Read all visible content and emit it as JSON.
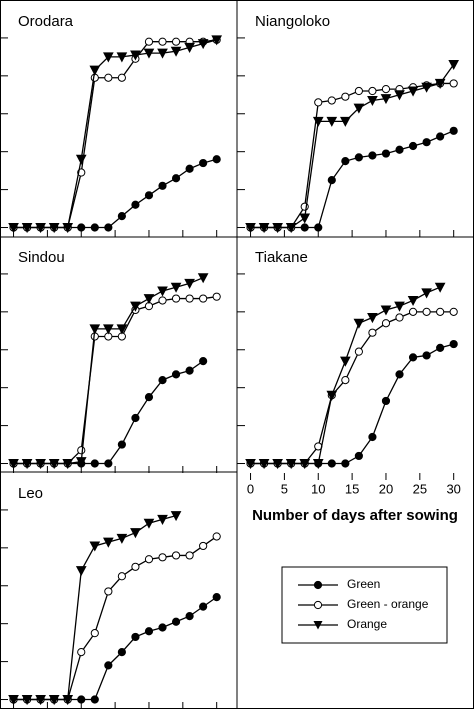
{
  "chart_data": [
    {
      "type": "line",
      "title": "Orodara",
      "x": [
        0,
        2,
        4,
        6,
        8,
        10,
        12,
        14,
        16,
        18,
        20,
        22,
        24,
        26,
        28,
        30
      ],
      "xlim": [
        -2,
        33
      ],
      "ylim": [
        -5,
        120
      ],
      "xticks": [
        0,
        5,
        10,
        15,
        20,
        25,
        30
      ],
      "yticks": [
        0,
        20,
        40,
        60,
        80,
        100
      ],
      "series": [
        {
          "color": "#000",
          "marker": "filled-circle",
          "values": [
            0,
            0,
            0,
            0,
            0,
            0,
            0,
            0,
            6,
            12,
            17,
            22,
            26,
            31,
            34,
            36
          ]
        },
        {
          "color": "#000",
          "marker": "open-circle",
          "values": [
            0,
            0,
            0,
            0,
            0,
            29,
            79,
            79,
            79,
            89,
            98,
            98,
            98,
            98,
            98,
            99
          ]
        },
        {
          "color": "#000",
          "marker": "triangle-down",
          "values": [
            0,
            0,
            0,
            0,
            0,
            36,
            83,
            90,
            90,
            91,
            92,
            92,
            93,
            95,
            97,
            99
          ]
        }
      ]
    },
    {
      "type": "line",
      "title": "Niangoloko",
      "x": [
        0,
        2,
        4,
        6,
        8,
        10,
        12,
        14,
        16,
        18,
        20,
        22,
        24,
        26,
        28,
        30
      ],
      "xlim": [
        -2,
        33
      ],
      "ylim": [
        -5,
        120
      ],
      "xticks": [
        0,
        5,
        10,
        15,
        20,
        25,
        30
      ],
      "yticks": [
        0,
        20,
        40,
        60,
        80,
        100
      ],
      "series": [
        {
          "color": "#000",
          "marker": "filled-circle",
          "values": [
            0,
            0,
            0,
            0,
            0,
            0,
            25,
            35,
            37,
            38,
            39,
            41,
            43,
            45,
            48,
            51
          ]
        },
        {
          "color": "#000",
          "marker": "open-circle",
          "values": [
            0,
            0,
            0,
            0,
            11,
            66,
            67,
            69,
            72,
            72,
            73,
            73,
            74,
            75,
            76,
            76
          ]
        },
        {
          "color": "#000",
          "marker": "triangle-down",
          "values": [
            0,
            0,
            0,
            0,
            5,
            56,
            56,
            56,
            63,
            67,
            68,
            70,
            72,
            74,
            76,
            86
          ]
        }
      ]
    },
    {
      "type": "line",
      "title": "Sindou",
      "x": [
        0,
        2,
        4,
        6,
        8,
        10,
        12,
        14,
        16,
        18,
        20,
        22,
        24,
        26,
        28,
        30
      ],
      "xlim": [
        -2,
        33
      ],
      "ylim": [
        -5,
        120
      ],
      "xticks": [
        0,
        5,
        10,
        15,
        20,
        25,
        30
      ],
      "yticks": [
        0,
        20,
        40,
        60,
        80,
        100
      ],
      "series": [
        {
          "color": "#000",
          "marker": "filled-circle",
          "values": [
            0,
            0,
            0,
            0,
            0,
            0,
            0,
            0,
            10,
            24,
            35,
            44,
            47,
            49,
            54,
            null
          ]
        },
        {
          "color": "#000",
          "marker": "open-circle",
          "values": [
            0,
            0,
            0,
            0,
            0,
            7,
            67,
            67,
            67,
            81,
            83,
            86,
            87,
            87,
            87,
            88
          ]
        },
        {
          "color": "#000",
          "marker": "triangle-down",
          "values": [
            0,
            0,
            0,
            0,
            0,
            1,
            71,
            71,
            71,
            83,
            87,
            91,
            93,
            95,
            98,
            null
          ]
        }
      ]
    },
    {
      "type": "line",
      "title": "Tiakane",
      "x": [
        0,
        2,
        4,
        6,
        8,
        10,
        12,
        14,
        16,
        18,
        20,
        22,
        24,
        26,
        28,
        30
      ],
      "xlim": [
        -2,
        33
      ],
      "ylim": [
        -5,
        120
      ],
      "xticks": [
        0,
        5,
        10,
        15,
        20,
        25,
        30
      ],
      "yticks": [
        0,
        20,
        40,
        60,
        80,
        100
      ],
      "xlabel": "Number of days after sowing",
      "series": [
        {
          "name": "Green",
          "color": "#000",
          "marker": "filled-circle",
          "values": [
            0,
            0,
            0,
            0,
            0,
            0,
            0,
            0,
            4,
            14,
            33,
            47,
            56,
            57,
            61,
            63
          ]
        },
        {
          "name": "Green - orange",
          "color": "#000",
          "marker": "open-circle",
          "values": [
            0,
            0,
            0,
            0,
            0,
            9,
            36,
            44,
            59,
            69,
            74,
            77,
            80,
            80,
            80,
            80
          ]
        },
        {
          "name": "Orange",
          "color": "#000",
          "marker": "triangle-down",
          "values": [
            0,
            0,
            0,
            0,
            0,
            0,
            36,
            54,
            74,
            77,
            81,
            83,
            86,
            90,
            93,
            null
          ]
        }
      ]
    },
    {
      "type": "line",
      "title": "Leo",
      "x": [
        0,
        2,
        4,
        6,
        8,
        10,
        12,
        14,
        16,
        18,
        20,
        22,
        24,
        26,
        28,
        30
      ],
      "xlim": [
        -2,
        33
      ],
      "ylim": [
        -5,
        120
      ],
      "xticks": [
        0,
        5,
        10,
        15,
        20,
        25,
        30
      ],
      "yticks": [
        0,
        20,
        40,
        60,
        80,
        100
      ],
      "series": [
        {
          "color": "#000",
          "marker": "filled-circle",
          "values": [
            0,
            0,
            0,
            0,
            0,
            0,
            0,
            18,
            25,
            33,
            36,
            38,
            41,
            44,
            49,
            54
          ]
        },
        {
          "color": "#000",
          "marker": "open-circle",
          "values": [
            0,
            0,
            0,
            0,
            0,
            25,
            35,
            57,
            65,
            70,
            74,
            75,
            76,
            76,
            81,
            86
          ]
        },
        {
          "color": "#000",
          "marker": "triangle-down",
          "values": [
            0,
            0,
            0,
            0,
            0,
            68,
            81,
            83,
            85,
            88,
            93,
            95,
            97,
            null,
            null,
            null
          ]
        }
      ]
    }
  ]
}
